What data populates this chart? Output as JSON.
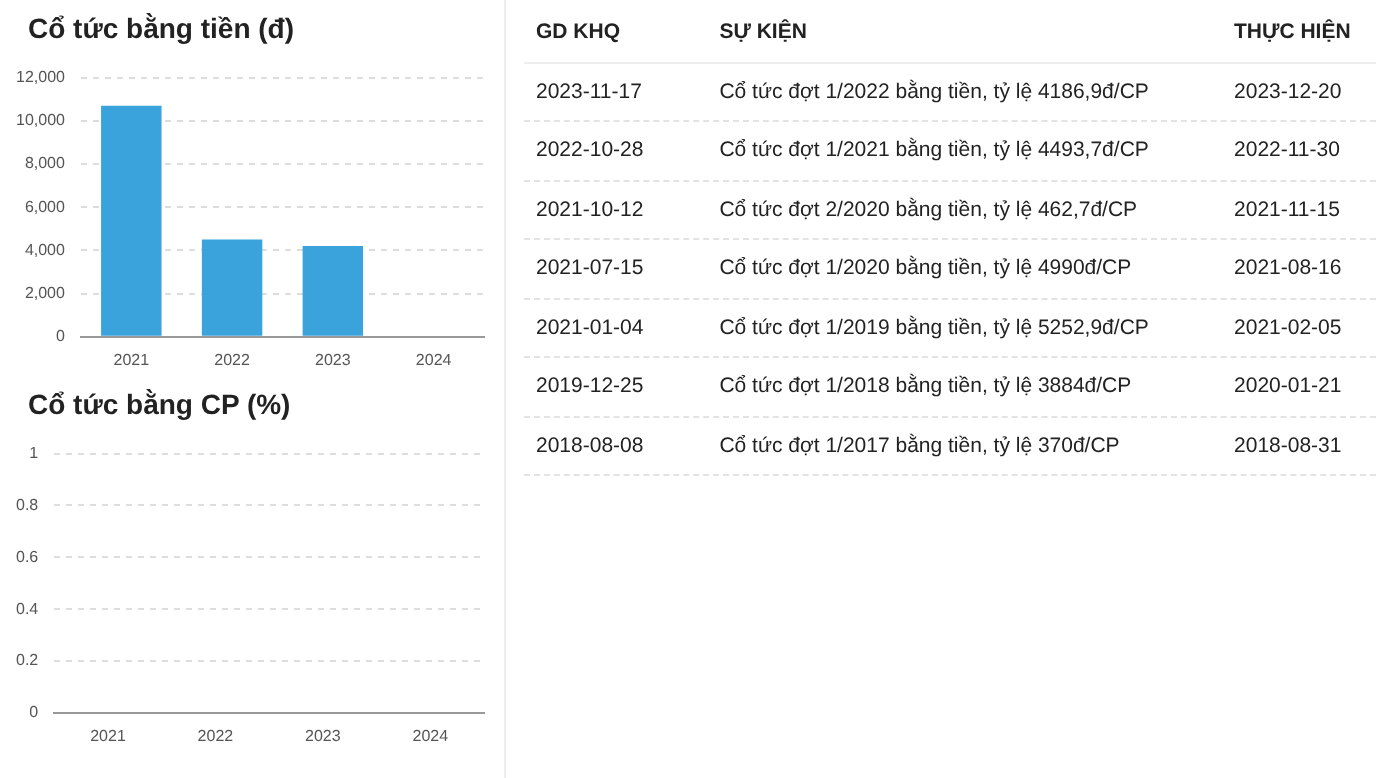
{
  "chart_data": [
    {
      "type": "bar",
      "title": "Cổ tức bằng tiền (đ)",
      "categories": [
        "2021",
        "2022",
        "2023",
        "2024"
      ],
      "series": [
        {
          "color": "#3aa3db",
          "values": [
            10700,
            4500,
            4200,
            0
          ]
        }
      ],
      "ylim": [
        0,
        12000
      ],
      "yticks": [
        {
          "value": 0,
          "label": "0"
        },
        {
          "value": 2000,
          "label": "2,000"
        },
        {
          "value": 4000,
          "label": "4,000"
        },
        {
          "value": 6000,
          "label": "6,000"
        },
        {
          "value": 8000,
          "label": "8,000"
        },
        {
          "value": 10000,
          "label": "10,000"
        },
        {
          "value": 12000,
          "label": "12,000"
        }
      ],
      "grid": "y",
      "legend": false
    },
    {
      "type": "bar",
      "title": "Cổ tức bằng CP (%)",
      "categories": [
        "2021",
        "2022",
        "2023",
        "2024"
      ],
      "series": [
        {
          "color": "#3aa3db",
          "values": [
            null,
            null,
            null,
            null
          ]
        }
      ],
      "ylim": [
        0,
        1
      ],
      "yticks": [
        0,
        0.2,
        0.4,
        0.6,
        0.8,
        1
      ],
      "grid": "y",
      "legend": false
    },
    {
      "type": "other",
      "annotations": [
        "GD KHQ",
        "SỰ KIỆN",
        "THỰC HIỆN",
        "2023-11-17",
        "Cổ tức đợt 1/2022 bằng tiền, tỷ lệ 4186,9đ/CP",
        "2023-12-20",
        "2022-10-28",
        "Cổ tức đợt 1/2021 bằng tiền, tỷ lệ 4493,7đ/CP",
        "2022-11-30",
        "2021-10-12",
        "Cổ tức đợt 2/2020 bằng tiền, tỷ lệ 462,7đ/CP",
        "2021-11-15",
        "2021-07-15",
        "Cổ tức đợt 1/2020 bằng tiền, tỷ lệ 4990đ/CP",
        "2021-08-16",
        "2021-01-04",
        "Cổ tức đợt 1/2019 bằng tiền, tỷ lệ 5252,9đ/CP",
        "2021-02-05",
        "2019-12-25",
        "Cổ tức đợt 1/2018 bằng tiền, tỷ lệ 3884đ/CP",
        "2020-01-21",
        "2018-08-08",
        "Cổ tức đợt 1/2017 bằng tiền, tỷ lệ 370đ/CP",
        "2018-08-31"
      ]
    }
  ]
}
